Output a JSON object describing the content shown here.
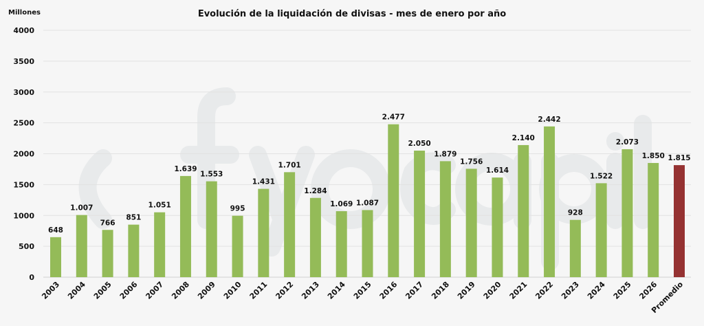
{
  "chart_data": {
    "type": "bar",
    "title": "Evolución de la liquidación de divisas - mes de enero  por año",
    "ylabel": "Millones",
    "xlabel": "",
    "ylim": [
      0,
      4000
    ],
    "yticks": [
      0,
      500,
      1000,
      1500,
      2000,
      2500,
      3000,
      3500,
      4000
    ],
    "grid": true,
    "categories": [
      "2003",
      "2004",
      "2005",
      "2006",
      "2007",
      "2008",
      "2009",
      "2010",
      "2011",
      "2012",
      "2013",
      "2014",
      "2015",
      "2016",
      "2017",
      "2018",
      "2019",
      "2020",
      "2021",
      "2022",
      "2023",
      "2024",
      "2025",
      "2026",
      "Promedio"
    ],
    "values": [
      648,
      1007,
      766,
      851,
      1051,
      1639,
      1553,
      995,
      1431,
      1701,
      1284,
      1069,
      1087,
      2477,
      2050,
      1879,
      1756,
      1614,
      2140,
      2442,
      928,
      1522,
      2073,
      1850,
      1815
    ],
    "data_labels": [
      "648",
      "1.007",
      "766",
      "851",
      "1.051",
      "1.639",
      "1.553",
      "995",
      "1.431",
      "1.701",
      "1.284",
      "1.069",
      "1.087",
      "2.477",
      "2.050",
      "1.879",
      "1.756",
      "1.614",
      "2.140",
      "2.442",
      "928",
      "1.522",
      "2.073",
      "1.850",
      "1.815"
    ],
    "colors": {
      "year": "#94bb58",
      "average": "#953232"
    },
    "watermark": "fyo capital"
  }
}
